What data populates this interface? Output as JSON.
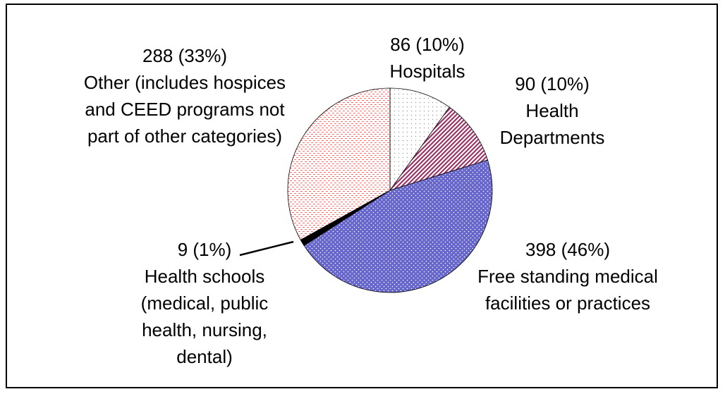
{
  "chart_data": {
    "type": "pie",
    "categories": [
      "Hospitals",
      "Health Departments",
      "Free standing medical facilities or practices",
      "Health schools (medical, public health, nursing, dental)",
      "Other (includes hospices and CEED programs not part of other categories)"
    ],
    "values": [
      86,
      90,
      398,
      9,
      288
    ],
    "value_labels": [
      "86 (10%)",
      "90 (10%)",
      "398 (46%)",
      "9 (1%)",
      "288 (33%)"
    ],
    "colors": [
      "#ffffff",
      "#993366",
      "#6666cc",
      "#000000",
      "#ff6666"
    ]
  }
}
